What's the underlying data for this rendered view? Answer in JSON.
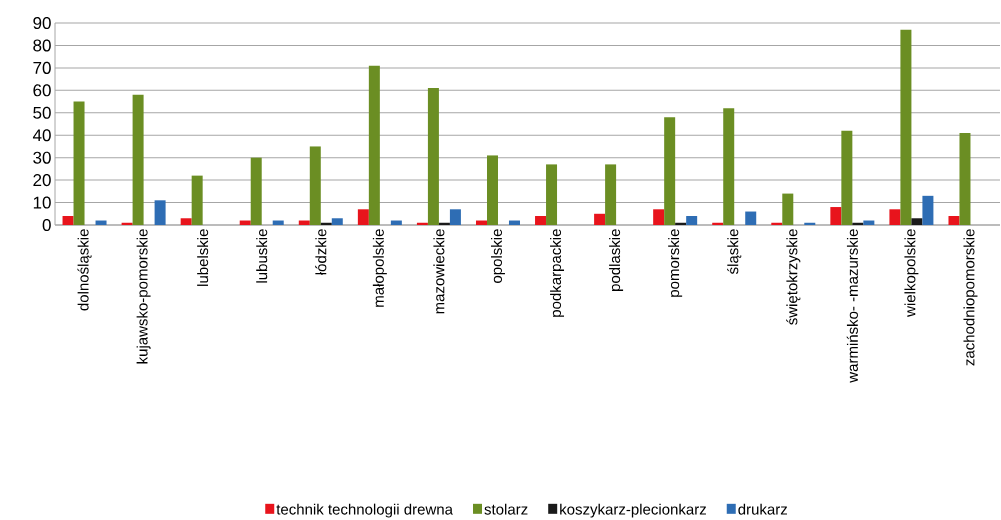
{
  "chart_data": {
    "type": "bar",
    "categories": [
      "dolnośląskie",
      "kujawsko-pomorskie",
      "lubelskie",
      "lubuskie",
      "łódzkie",
      "małopolskie",
      "mazowieckie",
      "opolskie",
      "podkarpackie",
      "podlaskie",
      "pomorskie",
      "śląskie",
      "świętokrzyskie",
      "warmińsko- -mazurskie",
      "wielkopolskie",
      "zachodniopomorskie"
    ],
    "series": [
      {
        "name": "technik technologii drewna",
        "color": "#e8141c",
        "values": [
          4,
          1,
          3,
          2,
          2,
          7,
          1,
          2,
          4,
          5,
          7,
          1,
          1,
          8,
          7,
          4
        ]
      },
      {
        "name": "stolarz",
        "color": "#6b8e23",
        "values": [
          55,
          58,
          22,
          30,
          35,
          71,
          61,
          31,
          27,
          27,
          48,
          52,
          14,
          42,
          87,
          41
        ]
      },
      {
        "name": "koszykarz-plecionkarz",
        "color": "#1a1a1a",
        "values": [
          0,
          0,
          0,
          0,
          1,
          0,
          1,
          0,
          0,
          0,
          1,
          0,
          0,
          1,
          3,
          0
        ]
      },
      {
        "name": "drukarz",
        "color": "#2e6db4",
        "values": [
          2,
          11,
          0,
          2,
          3,
          2,
          7,
          2,
          0,
          0,
          4,
          6,
          1,
          2,
          13,
          0
        ]
      }
    ],
    "ylim": [
      0,
      90
    ],
    "yticks": [
      0,
      10,
      20,
      30,
      40,
      50,
      60,
      70,
      80,
      90
    ],
    "grid": "y",
    "legend": "bottom"
  }
}
